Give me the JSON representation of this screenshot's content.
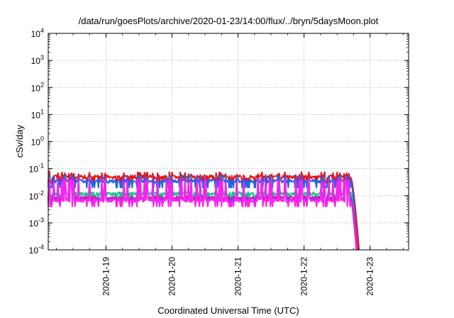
{
  "chart_data": {
    "type": "line",
    "title": "/data/run/goesPlots/archive/2020-01-23/14:00/flux/../bryn/5daysMoon.plot",
    "xlabel": "Coordinated Universal Time (UTC)",
    "ylabel": "cSv/day",
    "yscale": "log",
    "ylim": [
      0.0001,
      10000
    ],
    "xlim": [
      "2020-01-18 03:00",
      "2020-01-23 14:00"
    ],
    "grid": true,
    "legend": "none",
    "y_ticks": [
      {
        "base": "10",
        "exp": "-4",
        "value": 0.0001
      },
      {
        "base": "10",
        "exp": "-3",
        "value": 0.001
      },
      {
        "base": "10",
        "exp": "-2",
        "value": 0.01
      },
      {
        "base": "10",
        "exp": "-1",
        "value": 0.1
      },
      {
        "base": "10",
        "exp": "0",
        "value": 1
      },
      {
        "base": "10",
        "exp": "1",
        "value": 10
      },
      {
        "base": "10",
        "exp": "2",
        "value": 100
      },
      {
        "base": "10",
        "exp": "3",
        "value": 1000
      },
      {
        "base": "10",
        "exp": "4",
        "value": 10000
      }
    ],
    "x_ticks": [
      {
        "label": "2020-1-19",
        "date": "2020-01-19 00:00"
      },
      {
        "label": "2020-1-20",
        "date": "2020-01-20 00:00"
      },
      {
        "label": "2020-1-21",
        "date": "2020-01-21 00:00"
      },
      {
        "label": "2020-1-22",
        "date": "2020-01-22 00:00"
      },
      {
        "label": "2020-1-23",
        "date": "2020-01-23 00:00"
      }
    ],
    "series": [
      {
        "color": "#ee1111",
        "baseline": 0.05,
        "spike_max": 0.075,
        "spike_min": 0.03,
        "end_date": "2020-01-22 17:00",
        "drop_end_date": "2020-01-22 20:00",
        "drop_end_value": 0.0001
      },
      {
        "color": "#1a66e6",
        "baseline": 0.035,
        "spike_max": 0.06,
        "spike_min": 0.02,
        "end_date": "2020-01-22 17:00",
        "drop_end_date": "2020-01-22 19:30",
        "drop_end_value": 0.0001
      },
      {
        "color": "#22bb99",
        "baseline": 0.012,
        "spike_max": 0.05,
        "spike_min": 0.007,
        "end_date": "2020-01-22 17:00",
        "drop_end_date": "2020-01-22 19:30",
        "drop_end_value": 0.0001
      },
      {
        "color": "#cc2288",
        "baseline": 0.0085,
        "spike_max": 0.05,
        "spike_min": 0.006,
        "end_date": "2020-01-22 17:00",
        "drop_end_date": "2020-01-22 19:30",
        "drop_end_value": 0.0001
      },
      {
        "color": "#8833ee",
        "baseline": 0.0075,
        "spike_max": 0.045,
        "spike_min": 0.005,
        "end_date": "2020-01-22 17:00",
        "drop_end_date": "2020-01-22 19:00",
        "drop_end_value": 0.0001
      },
      {
        "color": "#ff22ee",
        "baseline": 0.0068,
        "spike_max": 0.04,
        "spike_min": 0.004,
        "end_date": "2020-01-22 17:00",
        "drop_end_date": "2020-01-22 19:00",
        "drop_end_value": 0.0001
      }
    ]
  }
}
